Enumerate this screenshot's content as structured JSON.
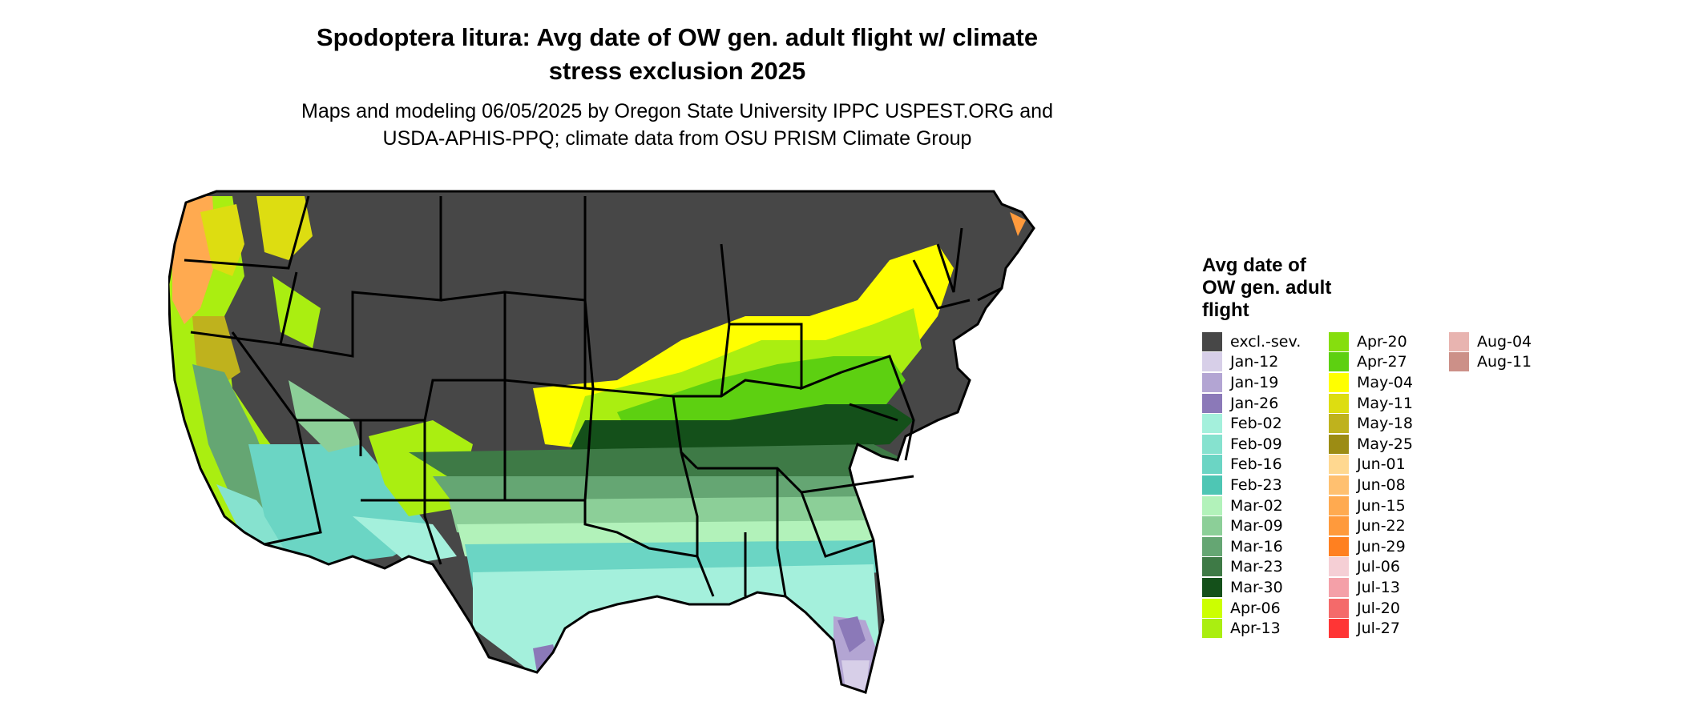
{
  "title_line1": "Spodoptera litura: Avg date of OW gen. adult flight w/ climate",
  "title_line2": "stress exclusion 2025",
  "subtitle_line1": "Maps and modeling 06/05/2025 by Oregon State University IPPC USPEST.ORG and",
  "subtitle_line2": "USDA-APHIS-PPQ; climate data from OSU PRISM Climate Group",
  "legend": {
    "title_lines": [
      "Avg date of",
      "OW gen. adult",
      "flight"
    ],
    "columns": [
      [
        {
          "label": "excl.-sev.",
          "color": "#474747"
        },
        {
          "label": "Jan-12",
          "color": "#d7cfe8"
        },
        {
          "label": "Jan-19",
          "color": "#b3a5d3"
        },
        {
          "label": "Jan-26",
          "color": "#8b79b8"
        },
        {
          "label": "Feb-02",
          "color": "#a4f0dc"
        },
        {
          "label": "Feb-09",
          "color": "#86e2cf"
        },
        {
          "label": "Feb-16",
          "color": "#6bd5c4"
        },
        {
          "label": "Feb-23",
          "color": "#4ec6b4"
        },
        {
          "label": "Mar-02",
          "color": "#b2f2ba"
        },
        {
          "label": "Mar-09",
          "color": "#8ccf98"
        },
        {
          "label": "Mar-16",
          "color": "#65a673"
        },
        {
          "label": "Mar-23",
          "color": "#3e7a46"
        },
        {
          "label": "Mar-30",
          "color": "#14501a"
        },
        {
          "label": "Apr-06",
          "color": "#ccff00"
        },
        {
          "label": "Apr-13",
          "color": "#aaee11"
        }
      ],
      [
        {
          "label": "Apr-20",
          "color": "#86de0e"
        },
        {
          "label": "Apr-27",
          "color": "#5dd011"
        },
        {
          "label": "May-04",
          "color": "#ffff00"
        },
        {
          "label": "May-11",
          "color": "#dddd11"
        },
        {
          "label": "May-18",
          "color": "#bfb21d"
        },
        {
          "label": "May-25",
          "color": "#9c8c14"
        },
        {
          "label": "Jun-01",
          "color": "#ffd890"
        },
        {
          "label": "Jun-08",
          "color": "#ffc070"
        },
        {
          "label": "Jun-15",
          "color": "#ffaa50"
        },
        {
          "label": "Jun-22",
          "color": "#ff9a3c"
        },
        {
          "label": "Jun-29",
          "color": "#ff8020"
        },
        {
          "label": "Jul-06",
          "color": "#f5cfd5"
        },
        {
          "label": "Jul-13",
          "color": "#f4a0a8"
        },
        {
          "label": "Jul-20",
          "color": "#f46a6a"
        },
        {
          "label": "Jul-27",
          "color": "#ff3535"
        }
      ],
      [
        {
          "label": "Aug-04",
          "color": "#e8b4b0"
        },
        {
          "label": "Aug-11",
          "color": "#cc9088"
        }
      ]
    ]
  },
  "map_colors": {
    "excluded": "#474747",
    "border": "#000000"
  }
}
